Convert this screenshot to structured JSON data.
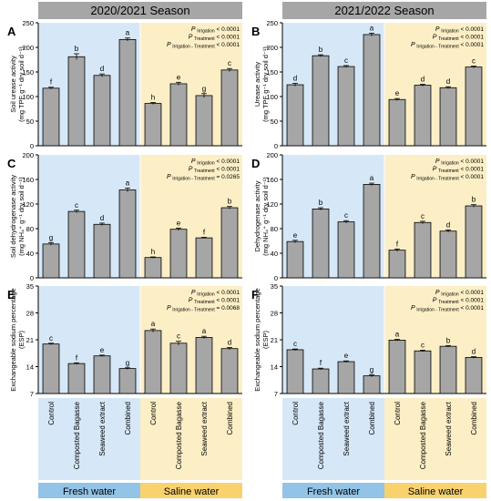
{
  "seasons": [
    "2020/2021 Season",
    "2021/2022 Season"
  ],
  "treatments": [
    "Control",
    "Composted Bagasse",
    "Seaweed extract",
    "Combined"
  ],
  "water": [
    "Fresh water",
    "Saline water"
  ],
  "colors": {
    "fresh": "#d6e8f7",
    "saline": "#fcefc6",
    "fresh_label": "#92c4e8",
    "saline_label": "#f9d26e",
    "bar": "#a6a6a6",
    "header": "#a6a6a6"
  },
  "chart_data": [
    {
      "type": "bar",
      "panel": "A",
      "ylabel": [
        "Soil urease activity",
        "(mg TPF g⁻¹ dry soil d⁻¹)"
      ],
      "ylim": [
        0,
        250
      ],
      "yticks": [
        0,
        50,
        100,
        150,
        200,
        250
      ],
      "categories": [
        "Control",
        "Composted Bagasse",
        "Seaweed extract",
        "Combined",
        "Control",
        "Composted Bagasse",
        "Seaweed extract",
        "Combined"
      ],
      "values": [
        117,
        181,
        143,
        216,
        86,
        126,
        102,
        154
      ],
      "errors": [
        2,
        6,
        3,
        3,
        2,
        3,
        4,
        3
      ],
      "letters": [
        "f",
        "b",
        "d",
        "a",
        "h",
        "e",
        "g",
        "c"
      ],
      "stats": [
        [
          "Irrigation",
          "< 0.0001"
        ],
        [
          "Treatment",
          "< 0.0001"
        ],
        [
          "Irrigation - Treatment",
          "< 0.0001"
        ]
      ]
    },
    {
      "type": "bar",
      "panel": "B",
      "ylabel": [
        "Urease activity",
        "(mg TPF g⁻¹ dry soil d⁻¹)"
      ],
      "ylim": [
        0,
        250
      ],
      "yticks": [
        0,
        50,
        100,
        150,
        200,
        250
      ],
      "categories": [
        "Control",
        "Composted Bagasse",
        "Seaweed extract",
        "Combined",
        "Control",
        "Composted Bagasse",
        "Seaweed extract",
        "Combined"
      ],
      "values": [
        124,
        183,
        161,
        226,
        94,
        123,
        118,
        160
      ],
      "errors": [
        3,
        2,
        2,
        3,
        2,
        2,
        2,
        2
      ],
      "letters": [
        "d",
        "b",
        "c",
        "a",
        "e",
        "d",
        "d",
        "c"
      ],
      "stats": [
        [
          "Irrigation",
          "< 0.0001"
        ],
        [
          "Treatment",
          "< 0.0001"
        ],
        [
          "Irrigation - Treatment",
          "< 0.0001"
        ]
      ]
    },
    {
      "type": "bar",
      "panel": "C",
      "ylabel": [
        "Soil dehydrogenase activity",
        "(mg NH₄⁺ g⁻¹ dry soil d⁻¹)"
      ],
      "ylim": [
        0,
        200
      ],
      "yticks": [
        0,
        40,
        80,
        120,
        160,
        200
      ],
      "categories": [
        "Control",
        "Composted Bagasse",
        "Seaweed extract",
        "Combined",
        "Control",
        "Composted Bagasse",
        "Seaweed extract",
        "Combined"
      ],
      "values": [
        55,
        108,
        87,
        143,
        33,
        79,
        65,
        114
      ],
      "errors": [
        2,
        2,
        2,
        3,
        1,
        2,
        1,
        2
      ],
      "letters": [
        "g",
        "c",
        "d",
        "a",
        "h",
        "e",
        "f",
        "b"
      ],
      "stats": [
        [
          "Irrigation",
          "< 0.0001"
        ],
        [
          "Treatment",
          "< 0.0001"
        ],
        [
          "Irrigation - Treatment",
          "= 0.0265"
        ]
      ]
    },
    {
      "type": "bar",
      "panel": "D",
      "ylabel": [
        "Dehydrogenase activity",
        "(mg NH₄⁺ g⁻¹ dry soil d⁻¹)"
      ],
      "ylim": [
        0,
        200
      ],
      "yticks": [
        0,
        40,
        80,
        120,
        160,
        200
      ],
      "categories": [
        "Control",
        "Composted Bagasse",
        "Seaweed extract",
        "Combined",
        "Control",
        "Composted Bagasse",
        "Seaweed extract",
        "Combined"
      ],
      "values": [
        59,
        112,
        91,
        152,
        45,
        90,
        76,
        117
      ],
      "errors": [
        2,
        2,
        2,
        2,
        2,
        2,
        2,
        2
      ],
      "letters": [
        "e",
        "b",
        "c",
        "a",
        "f",
        "c",
        "d",
        "b"
      ],
      "stats": [
        [
          "Irrigation",
          "< 0.0001"
        ],
        [
          "Treatment",
          "< 0.0001"
        ],
        [
          "Irrigation - Treatment",
          "< 0.0001"
        ]
      ]
    },
    {
      "type": "bar",
      "panel": "E",
      "ylabel": [
        "Exchangeable sodium percentage",
        "(ESP)"
      ],
      "ylim": [
        7,
        35
      ],
      "yticks": [
        7,
        14,
        21,
        28,
        35
      ],
      "categories": [
        "Control",
        "Composted Bagasse",
        "Seaweed extract",
        "Combined",
        "Control",
        "Composted Bagasse",
        "Seaweed extract",
        "Combined"
      ],
      "values": [
        19.9,
        14.8,
        16.8,
        13.5,
        23.4,
        20.1,
        21.6,
        18.7
      ],
      "errors": [
        0.2,
        0.2,
        0.2,
        0.2,
        0.4,
        0.5,
        0.3,
        0.3
      ],
      "letters": [
        "c",
        "f",
        "e",
        "g",
        "a",
        "c",
        "a",
        "d"
      ],
      "stats": [
        [
          "Irrigation",
          "< 0.0001"
        ],
        [
          "Treatment",
          "< 0.0001"
        ],
        [
          "Irrigation - Treatment",
          "= 0.0068"
        ]
      ]
    },
    {
      "type": "bar",
      "panel": "F",
      "ylabel": [
        "Exchangeable sodium percentage",
        "(ESP)"
      ],
      "ylim": [
        7,
        35
      ],
      "yticks": [
        7,
        14,
        21,
        28,
        35
      ],
      "categories": [
        "Control",
        "Composted Bagasse",
        "Seaweed extract",
        "Combined",
        "Control",
        "Composted Bagasse",
        "Seaweed extract",
        "Combined"
      ],
      "values": [
        18.4,
        13.4,
        15.3,
        11.6,
        20.9,
        18.1,
        19.3,
        16.4
      ],
      "errors": [
        0.2,
        0.2,
        0.2,
        0.3,
        0.2,
        0.2,
        0.2,
        0.2
      ],
      "letters": [
        "c",
        "f",
        "e",
        "g",
        "a",
        "c",
        "b",
        "d"
      ],
      "stats": [
        [
          "Irrigation",
          "< 0.0001"
        ],
        [
          "Treatment",
          "< 0.0001"
        ],
        [
          "Irrigation - Treatment",
          "< 0.0001"
        ]
      ]
    }
  ]
}
